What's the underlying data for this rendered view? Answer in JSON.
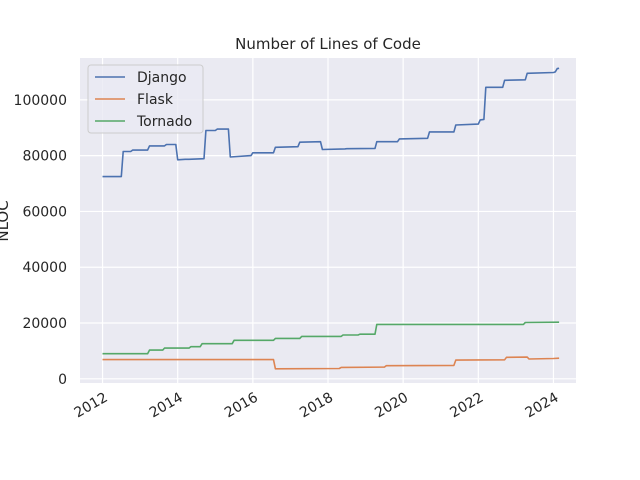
{
  "chart_data": {
    "type": "line",
    "title": "Number of Lines of Code",
    "xlabel": "",
    "ylabel": "NLOC",
    "xlim": [
      2011.4,
      2024.6
    ],
    "ylim": [
      -1500,
      115000
    ],
    "x_ticks": [
      2012,
      2014,
      2016,
      2018,
      2020,
      2022,
      2024
    ],
    "x_tick_labels": [
      "2012",
      "2014",
      "2016",
      "2018",
      "2020",
      "2022",
      "2024"
    ],
    "y_ticks": [
      0,
      20000,
      40000,
      60000,
      80000,
      100000
    ],
    "y_tick_labels": [
      "0",
      "20000",
      "40000",
      "60000",
      "80000",
      "100000"
    ],
    "grid": true,
    "legend_position": "upper-left",
    "series": [
      {
        "name": "Django",
        "color": "#4c72b0",
        "x": [
          2012.0,
          2012.5,
          2012.55,
          2012.75,
          2012.8,
          2013.2,
          2013.25,
          2013.65,
          2013.7,
          2013.95,
          2014.0,
          2014.2,
          2014.3,
          2014.7,
          2014.75,
          2015.0,
          2015.05,
          2015.35,
          2015.4,
          2015.95,
          2016.0,
          2016.55,
          2016.6,
          2017.2,
          2017.25,
          2017.8,
          2017.85,
          2018.45,
          2018.5,
          2019.25,
          2019.3,
          2019.85,
          2019.9,
          2020.65,
          2020.7,
          2021.35,
          2021.4,
          2022.0,
          2022.05,
          2022.15,
          2022.2,
          2022.65,
          2022.7,
          2023.25,
          2023.3,
          2024.0,
          2024.05,
          2024.1,
          2024.15
        ],
        "y": [
          72500,
          72500,
          81500,
          81500,
          82000,
          82000,
          83500,
          83500,
          84000,
          84000,
          78500,
          78700,
          78700,
          78900,
          89000,
          89000,
          89500,
          89500,
          79500,
          80000,
          81000,
          81000,
          83000,
          83200,
          84800,
          85000,
          82200,
          82400,
          82500,
          82600,
          85000,
          85000,
          86000,
          86200,
          88500,
          88500,
          91000,
          91300,
          92800,
          93000,
          104500,
          104500,
          107000,
          107200,
          109500,
          109800,
          110000,
          111200,
          111300
        ]
      },
      {
        "name": "Flask",
        "color": "#dd8452",
        "x": [
          2012.0,
          2016.55,
          2016.6,
          2018.3,
          2018.35,
          2019.5,
          2019.55,
          2021.35,
          2021.4,
          2022.7,
          2022.75,
          2023.3,
          2023.35,
          2024.0,
          2024.15
        ],
        "y": [
          6900,
          6900,
          3600,
          3700,
          4100,
          4200,
          4700,
          4800,
          6700,
          6800,
          7700,
          7800,
          7100,
          7300,
          7400
        ]
      },
      {
        "name": "Tornado",
        "color": "#55a868",
        "x": [
          2012.0,
          2013.2,
          2013.25,
          2013.6,
          2013.65,
          2014.3,
          2014.35,
          2014.6,
          2014.65,
          2015.45,
          2015.5,
          2016.55,
          2016.6,
          2017.25,
          2017.3,
          2018.35,
          2018.4,
          2018.8,
          2018.85,
          2019.25,
          2019.3,
          2023.2,
          2023.25,
          2024.15
        ],
        "y": [
          9000,
          9000,
          10300,
          10300,
          11000,
          11000,
          11500,
          11500,
          12600,
          12600,
          13800,
          13800,
          14500,
          14500,
          15200,
          15200,
          15700,
          15700,
          16000,
          16000,
          19500,
          19500,
          20200,
          20300
        ]
      }
    ]
  }
}
